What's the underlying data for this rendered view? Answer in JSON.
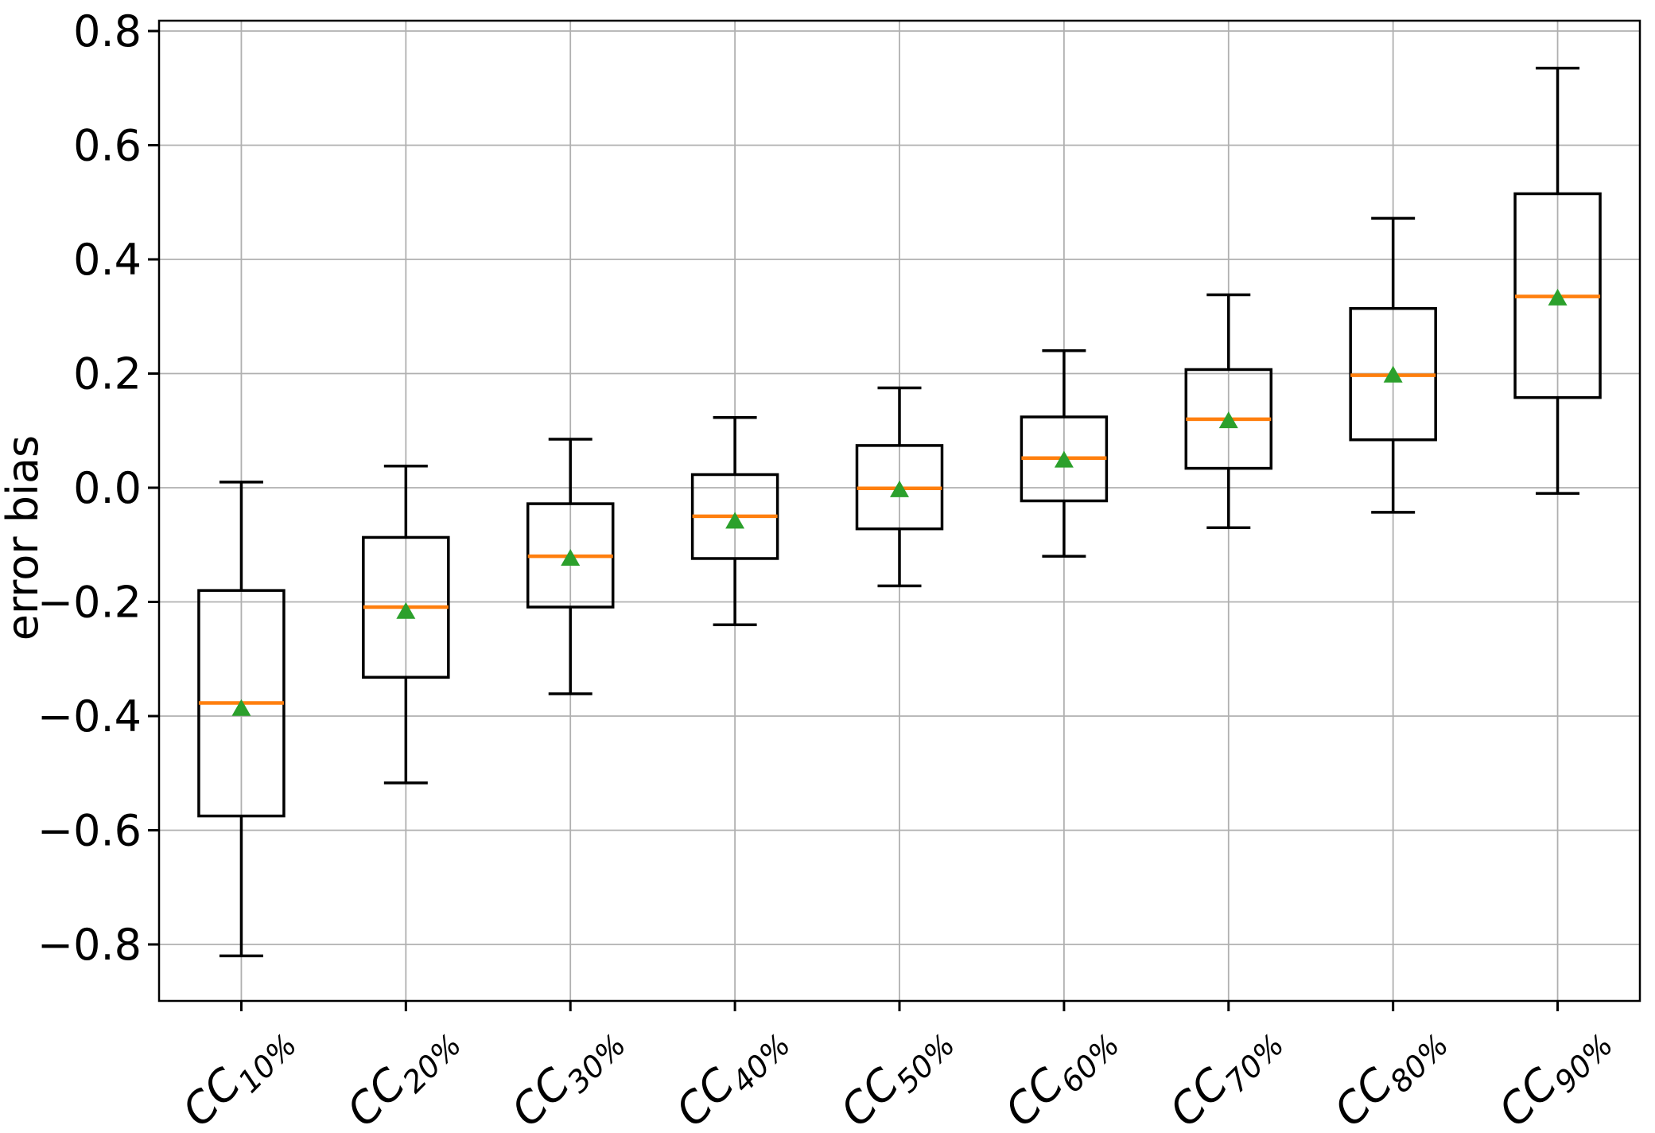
{
  "figure": {
    "background": "#ffffff"
  },
  "chart_data": {
    "type": "box",
    "title": "",
    "xlabel": "",
    "ylabel": "error bias",
    "grid": true,
    "legend": null,
    "x_tick_rotation_deg": 45,
    "ylim": [
      -0.9,
      0.82
    ],
    "yticks": [
      {
        "value": 0.8,
        "label": "0.8"
      },
      {
        "value": 0.6,
        "label": "0.6"
      },
      {
        "value": 0.4,
        "label": "0.4"
      },
      {
        "value": 0.2,
        "label": "0.2"
      },
      {
        "value": 0.0,
        "label": "0.0"
      },
      {
        "value": -0.2,
        "label": "−0.2"
      },
      {
        "value": -0.4,
        "label": "−0.4"
      },
      {
        "value": -0.6,
        "label": "−0.6"
      },
      {
        "value": -0.8,
        "label": "−0.8"
      }
    ],
    "categories": [
      {
        "label": "CC10%",
        "base": "CC",
        "subscript": "10%"
      },
      {
        "label": "CC20%",
        "base": "CC",
        "subscript": "20%"
      },
      {
        "label": "CC30%",
        "base": "CC",
        "subscript": "30%"
      },
      {
        "label": "CC40%",
        "base": "CC",
        "subscript": "40%"
      },
      {
        "label": "CC50%",
        "base": "CC",
        "subscript": "50%"
      },
      {
        "label": "CC60%",
        "base": "CC",
        "subscript": "60%"
      },
      {
        "label": "CC70%",
        "base": "CC",
        "subscript": "70%"
      },
      {
        "label": "CC80%",
        "base": "CC",
        "subscript": "80%"
      },
      {
        "label": "CC90%",
        "base": "CC",
        "subscript": "90%"
      }
    ],
    "boxes": [
      {
        "category": "CC10%",
        "whisker_low": -0.82,
        "q1": -0.575,
        "median": -0.377,
        "mean": -0.385,
        "q3": -0.18,
        "whisker_high": 0.01
      },
      {
        "category": "CC20%",
        "whisker_low": -0.517,
        "q1": -0.332,
        "median": -0.209,
        "mean": -0.215,
        "q3": -0.087,
        "whisker_high": 0.038
      },
      {
        "category": "CC30%",
        "whisker_low": -0.361,
        "q1": -0.209,
        "median": -0.12,
        "mean": -0.122,
        "q3": -0.028,
        "whisker_high": 0.085
      },
      {
        "category": "CC40%",
        "whisker_low": -0.24,
        "q1": -0.124,
        "median": -0.05,
        "mean": -0.057,
        "q3": 0.023,
        "whisker_high": 0.123
      },
      {
        "category": "CC50%",
        "whisker_low": -0.172,
        "q1": -0.072,
        "median": -0.001,
        "mean": -0.002,
        "q3": 0.074,
        "whisker_high": 0.175
      },
      {
        "category": "CC60%",
        "whisker_low": -0.12,
        "q1": -0.023,
        "median": 0.052,
        "mean": 0.05,
        "q3": 0.124,
        "whisker_high": 0.24
      },
      {
        "category": "CC70%",
        "whisker_low": -0.07,
        "q1": 0.034,
        "median": 0.12,
        "mean": 0.119,
        "q3": 0.207,
        "whisker_high": 0.338
      },
      {
        "category": "CC80%",
        "whisker_low": -0.043,
        "q1": 0.084,
        "median": 0.197,
        "mean": 0.199,
        "q3": 0.314,
        "whisker_high": 0.472
      },
      {
        "category": "CC90%",
        "whisker_low": -0.01,
        "q1": 0.158,
        "median": 0.335,
        "mean": 0.334,
        "q3": 0.515,
        "whisker_high": 0.735
      }
    ],
    "mean_marker_shape": "triangle-up",
    "colors": {
      "box": "#000000",
      "whisker": "#000000",
      "median": "#ff7f0e",
      "mean_marker": "#2ca02c",
      "grid": "#b0b0b0",
      "axis": "#000000",
      "text": "#000000",
      "background": "#ffffff"
    }
  }
}
